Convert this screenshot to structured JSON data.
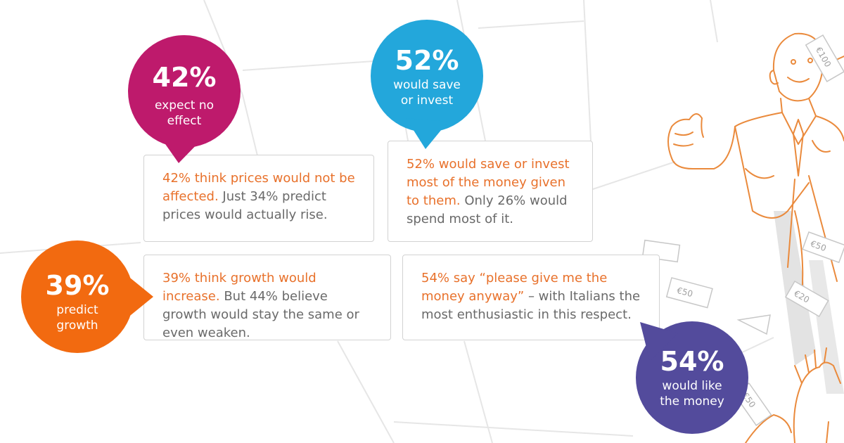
{
  "colors": {
    "magenta": "#be1a6c",
    "blue": "#23a7db",
    "orange": "#f26a10",
    "purple": "#534b9c",
    "highlight_text": "#e8712b",
    "body_text": "#6a6a6a",
    "illustration": "#ea8a3c"
  },
  "bubbles": [
    {
      "pct": "42%",
      "line1": "expect no",
      "line2": "effect"
    },
    {
      "pct": "52%",
      "line1": "would save",
      "line2": "or invest"
    },
    {
      "pct": "39%",
      "line1": "predict",
      "line2": "growth"
    },
    {
      "pct": "54%",
      "line1": "would like",
      "line2": "the money"
    }
  ],
  "cards": [
    {
      "highlight": "42% think prices would not be affected.",
      "rest": " Just 34% predict prices would actually rise."
    },
    {
      "highlight": "52% would save or invest most of the money given to them.",
      "rest": " Only 26% would spend most of it."
    },
    {
      "highlight": "39% think growth would increase.",
      "rest": " But 44% believe growth would stay the same or even weaken."
    },
    {
      "highlight": "54% say “please give me the money anyway”",
      "rest": " – with Italians the most enthusiastic in this respect."
    }
  ],
  "banknotes": [
    "€100",
    "€50",
    "€20",
    "€50",
    "€50"
  ],
  "icons": [
    "man-throwing-money-illustration",
    "reaching-hands-illustration"
  ]
}
